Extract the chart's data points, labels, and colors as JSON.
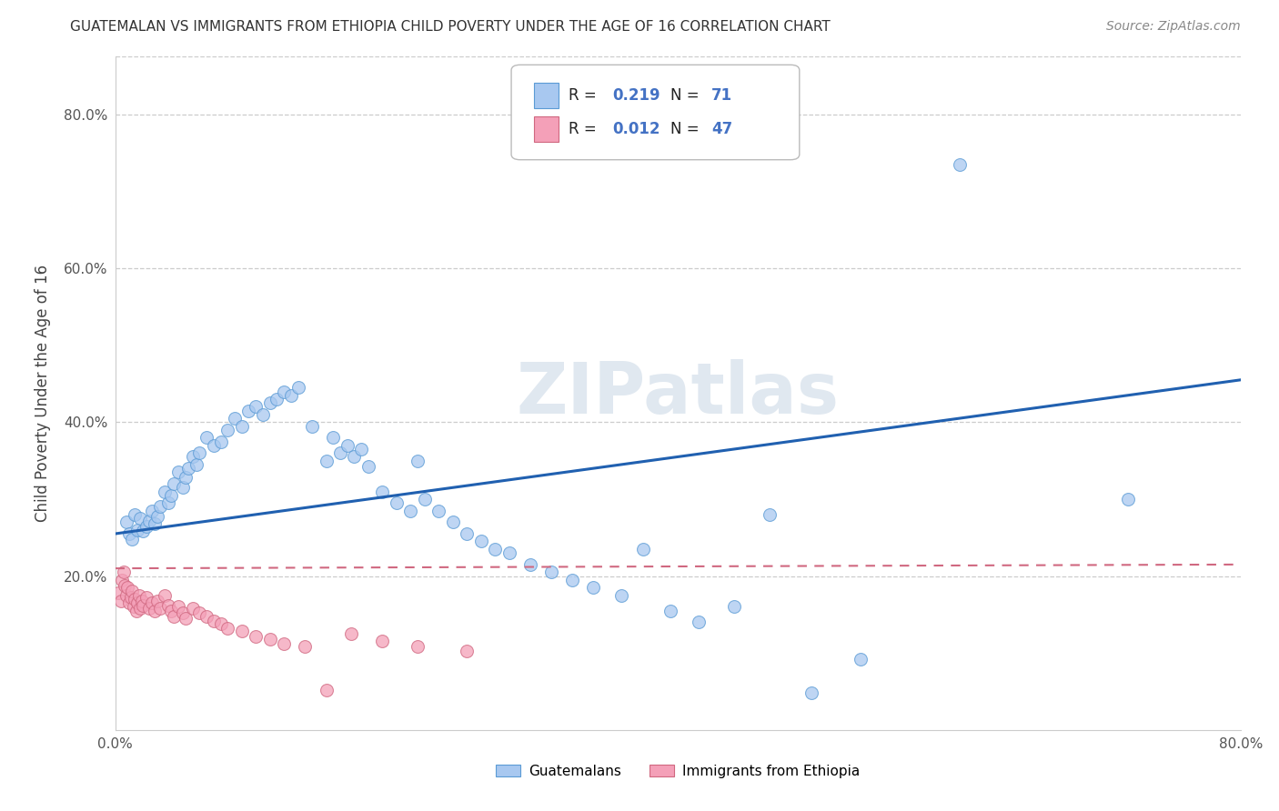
{
  "title": "GUATEMALAN VS IMMIGRANTS FROM ETHIOPIA CHILD POVERTY UNDER THE AGE OF 16 CORRELATION CHART",
  "source": "Source: ZipAtlas.com",
  "ylabel": "Child Poverty Under the Age of 16",
  "xlim": [
    0.0,
    0.8
  ],
  "ylim": [
    0.0,
    0.875
  ],
  "xticks": [
    0.0,
    0.1,
    0.2,
    0.3,
    0.4,
    0.5,
    0.6,
    0.7,
    0.8
  ],
  "xticklabels": [
    "0.0%",
    "",
    "",
    "",
    "",
    "",
    "",
    "",
    "80.0%"
  ],
  "ytick_positions": [
    0.2,
    0.4,
    0.6,
    0.8
  ],
  "ytick_labels": [
    "20.0%",
    "40.0%",
    "60.0%",
    "80.0%"
  ],
  "r_guatemalan": 0.219,
  "n_guatemalan": 71,
  "r_ethiopia": 0.012,
  "n_ethiopia": 47,
  "legend_label_1": "Guatemalans",
  "legend_label_2": "Immigrants from Ethiopia",
  "color_guatemalan": "#a8c8f0",
  "color_ethiopia": "#f4a0b8",
  "edge_guatemalan": "#5b9bd5",
  "edge_ethiopia": "#d06880",
  "line_color_guatemalan": "#2060b0",
  "line_color_ethiopia": "#d06880",
  "watermark": "ZIPatlas",
  "background_color": "#ffffff",
  "grid_color": "#cccccc",
  "guatemalan_x": [
    0.008,
    0.01,
    0.012,
    0.014,
    0.016,
    0.018,
    0.02,
    0.022,
    0.024,
    0.026,
    0.028,
    0.03,
    0.032,
    0.035,
    0.038,
    0.04,
    0.042,
    0.045,
    0.048,
    0.05,
    0.052,
    0.055,
    0.058,
    0.06,
    0.065,
    0.07,
    0.075,
    0.08,
    0.085,
    0.09,
    0.095,
    0.1,
    0.105,
    0.11,
    0.115,
    0.12,
    0.125,
    0.13,
    0.14,
    0.15,
    0.155,
    0.16,
    0.165,
    0.17,
    0.175,
    0.18,
    0.19,
    0.2,
    0.21,
    0.215,
    0.22,
    0.23,
    0.24,
    0.25,
    0.26,
    0.27,
    0.28,
    0.295,
    0.31,
    0.325,
    0.34,
    0.36,
    0.375,
    0.395,
    0.415,
    0.44,
    0.465,
    0.495,
    0.53,
    0.6,
    0.72
  ],
  "guatemalan_y": [
    0.27,
    0.255,
    0.248,
    0.28,
    0.26,
    0.275,
    0.258,
    0.265,
    0.272,
    0.285,
    0.268,
    0.278,
    0.29,
    0.31,
    0.295,
    0.305,
    0.32,
    0.335,
    0.315,
    0.328,
    0.34,
    0.355,
    0.345,
    0.36,
    0.38,
    0.37,
    0.375,
    0.39,
    0.405,
    0.395,
    0.415,
    0.42,
    0.41,
    0.425,
    0.43,
    0.44,
    0.435,
    0.445,
    0.395,
    0.35,
    0.38,
    0.36,
    0.37,
    0.355,
    0.365,
    0.342,
    0.31,
    0.295,
    0.285,
    0.35,
    0.3,
    0.285,
    0.27,
    0.255,
    0.245,
    0.235,
    0.23,
    0.215,
    0.205,
    0.195,
    0.185,
    0.175,
    0.235,
    0.155,
    0.14,
    0.16,
    0.28,
    0.048,
    0.092,
    0.735,
    0.3
  ],
  "ethiopia_x": [
    0.002,
    0.004,
    0.005,
    0.006,
    0.007,
    0.008,
    0.009,
    0.01,
    0.011,
    0.012,
    0.013,
    0.014,
    0.015,
    0.016,
    0.017,
    0.018,
    0.019,
    0.02,
    0.022,
    0.024,
    0.026,
    0.028,
    0.03,
    0.032,
    0.035,
    0.038,
    0.04,
    0.042,
    0.045,
    0.048,
    0.05,
    0.055,
    0.06,
    0.065,
    0.07,
    0.075,
    0.08,
    0.09,
    0.1,
    0.11,
    0.12,
    0.135,
    0.15,
    0.168,
    0.19,
    0.215,
    0.25
  ],
  "ethiopia_y": [
    0.178,
    0.168,
    0.195,
    0.205,
    0.188,
    0.175,
    0.185,
    0.165,
    0.172,
    0.18,
    0.16,
    0.17,
    0.155,
    0.165,
    0.175,
    0.158,
    0.168,
    0.162,
    0.172,
    0.158,
    0.165,
    0.155,
    0.168,
    0.158,
    0.175,
    0.162,
    0.155,
    0.148,
    0.16,
    0.152,
    0.145,
    0.158,
    0.152,
    0.148,
    0.142,
    0.138,
    0.132,
    0.128,
    0.122,
    0.118,
    0.112,
    0.108,
    0.052,
    0.125,
    0.115,
    0.108,
    0.102
  ],
  "guat_line_x0": 0.0,
  "guat_line_y0": 0.255,
  "guat_line_x1": 0.8,
  "guat_line_y1": 0.455,
  "eth_line_x0": 0.0,
  "eth_line_y0": 0.21,
  "eth_line_x1": 0.8,
  "eth_line_y1": 0.215
}
